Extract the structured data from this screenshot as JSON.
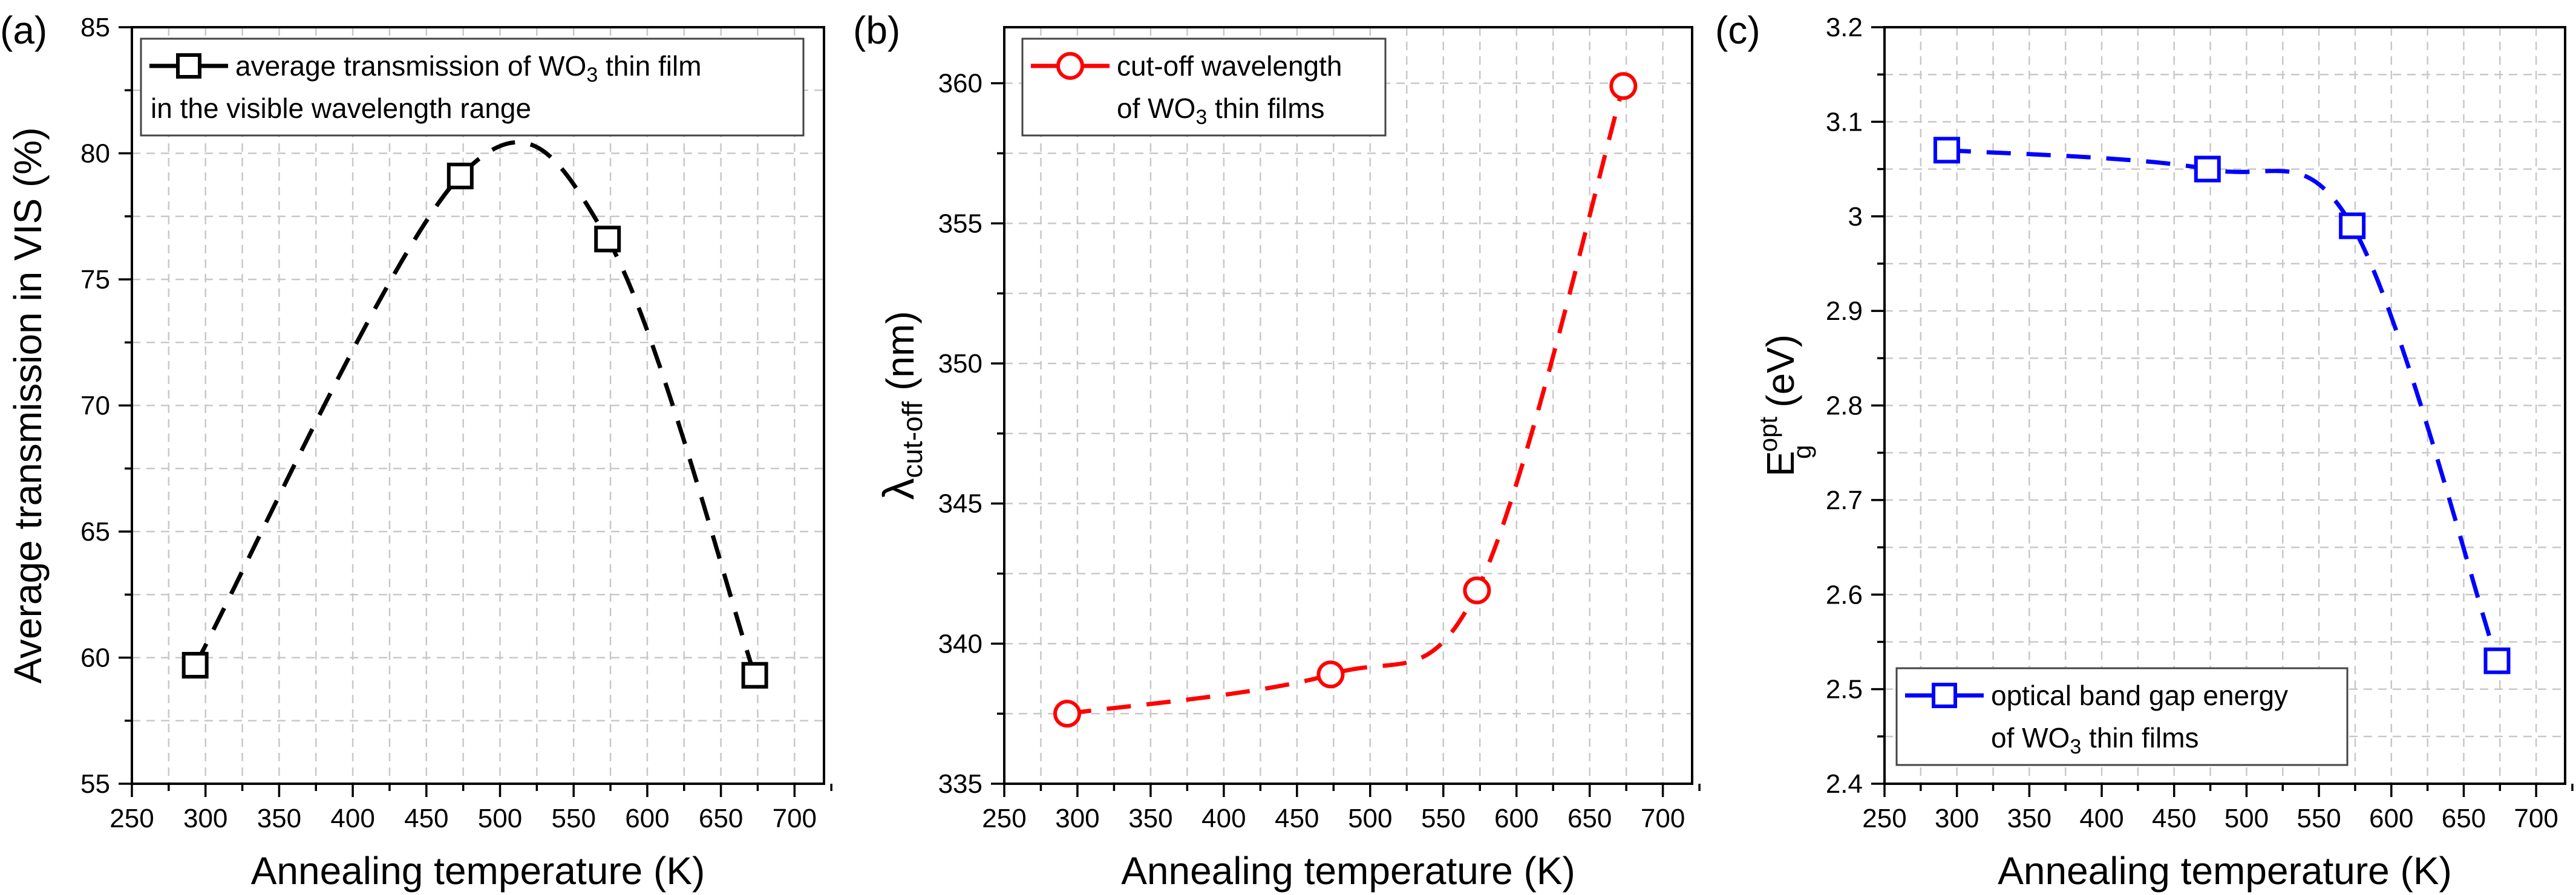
{
  "chart_data": [
    {
      "type": "line",
      "panel_label": "(a)",
      "xlabel": "Annealing temperature (K)",
      "ylabel": "Average transmission in VIS (%)",
      "xlim": [
        250,
        720
      ],
      "ylim": [
        55,
        85
      ],
      "xticks": [
        250,
        300,
        350,
        400,
        450,
        500,
        550,
        600,
        650,
        700
      ],
      "yticks": [
        55,
        60,
        65,
        70,
        75,
        80,
        85
      ],
      "grid": true,
      "color": "#000000",
      "marker": "square",
      "legend_position": "top-left",
      "legend": {
        "line1_pre": "average transmission of WO",
        "line1_sub": "3",
        "line1_post": " thin film",
        "line2": "in the visible wavelength range"
      },
      "series": [
        {
          "name": "average transmission of WO3 thin film in the visible wavelength range",
          "x": [
            293,
            473,
            573,
            673
          ],
          "y": [
            59.7,
            79.1,
            76.6,
            59.3
          ]
        }
      ]
    },
    {
      "type": "line",
      "panel_label": "(b)",
      "xlabel": "Annealing temperature (K)",
      "ylabel_main": "λ",
      "ylabel_sub": "cut-off",
      "ylabel_unit": " (nm)",
      "xlim": [
        250,
        720
      ],
      "ylim": [
        335,
        362
      ],
      "xticks": [
        250,
        300,
        350,
        400,
        450,
        500,
        550,
        600,
        650,
        700
      ],
      "yticks": [
        335,
        340,
        345,
        350,
        355,
        360
      ],
      "grid": true,
      "color": "#ff0000",
      "marker": "circle",
      "legend_position": "top-left",
      "legend": {
        "line1": "cut-off wavelength",
        "line2_pre": "of WO",
        "line2_sub": "3",
        "line2_post": " thin films"
      },
      "series": [
        {
          "name": "cut-off wavelength of WO3 thin films",
          "x": [
            293,
            473,
            573,
            673
          ],
          "y": [
            337.5,
            338.9,
            341.9,
            359.9
          ]
        }
      ]
    },
    {
      "type": "line",
      "panel_label": "(c)",
      "xlabel": "Annealing temperature (K)",
      "ylabel_main": "E",
      "ylabel_sup": "opt",
      "ylabel_sub": "g",
      "ylabel_unit": " (eV)",
      "xlim": [
        250,
        720
      ],
      "ylim": [
        2.4,
        3.2
      ],
      "xticks": [
        250,
        300,
        350,
        400,
        450,
        500,
        550,
        600,
        650,
        700
      ],
      "yticks": [
        2.4,
        2.5,
        2.6,
        2.7,
        2.8,
        2.9,
        3.0,
        3.1,
        3.2
      ],
      "ytick_labels": [
        "2.4",
        "2.5",
        "2.6",
        "2.7",
        "2.8",
        "2.9",
        "3",
        "3.1",
        "3.2"
      ],
      "grid": true,
      "color": "#0000ff",
      "marker": "square",
      "legend_position": "bottom-left",
      "legend": {
        "line1": "optical band gap energy",
        "line2_pre": "of WO",
        "line2_sub": "3",
        "line2_post": " thin films"
      },
      "series": [
        {
          "name": "optical band gap energy of WO3 thin films",
          "x": [
            293,
            473,
            573,
            673
          ],
          "y": [
            3.07,
            3.05,
            2.99,
            2.53
          ]
        }
      ]
    }
  ]
}
